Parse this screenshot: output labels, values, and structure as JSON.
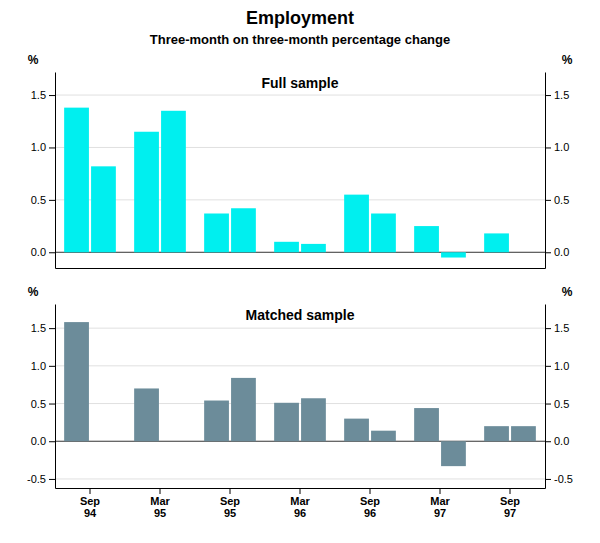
{
  "title": "Employment",
  "subtitle": "Three-month on three-month percentage change",
  "chart_data": [
    {
      "type": "bar",
      "title": "Full sample",
      "categories": [
        "Sep\n94",
        "Mar\n95",
        "Sep\n95",
        "Mar\n96",
        "Sep\n96",
        "Mar\n97",
        "Sep\n97"
      ],
      "series": [
        {
          "color": "#00EFEF",
          "values": [
            1.38,
            1.15,
            0.37,
            0.1,
            0.55,
            0.25,
            0.18
          ]
        },
        {
          "color": "#00EFEF",
          "values": [
            0.82,
            1.35,
            0.42,
            0.08,
            0.37,
            -0.05,
            null
          ]
        }
      ],
      "ylabel": "%",
      "ylim": [
        -0.15,
        1.72
      ],
      "yticks": [
        {
          "value": 0,
          "label": "0.0"
        },
        0.5,
        {
          "value": 1,
          "label": "1.0"
        },
        1.5
      ],
      "grid": true,
      "tick_labels": "y"
    },
    {
      "type": "bar",
      "title": "Matched sample",
      "categories": [
        "Sep\n94",
        "Mar\n95",
        "Sep\n95",
        "Mar\n96",
        "Sep\n96",
        "Mar\n97",
        "Sep\n97"
      ],
      "series": [
        {
          "color": "#6C8C9A",
          "values": [
            1.58,
            0.7,
            0.54,
            0.51,
            0.3,
            0.44,
            0.2
          ]
        },
        {
          "color": "#6C8C9A",
          "values": [
            null,
            null,
            0.84,
            0.57,
            0.14,
            -0.33,
            0.2
          ]
        }
      ],
      "ylabel": "%",
      "ylim": [
        -0.62,
        1.82
      ],
      "yticks": [
        -0.5,
        {
          "value": 0,
          "label": "0.0"
        },
        0.5,
        {
          "value": 1,
          "label": "1.0"
        },
        1.5
      ],
      "grid": true
    }
  ]
}
